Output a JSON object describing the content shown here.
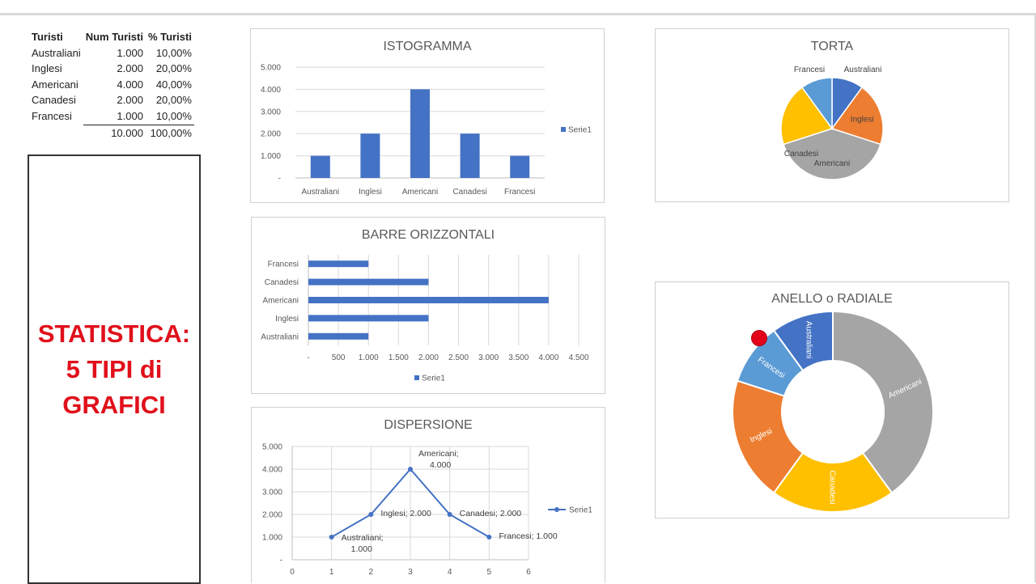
{
  "table": {
    "headers": [
      "Turisti",
      "Num Turisti",
      "% Turisti"
    ],
    "rows": [
      {
        "name": "Australiani",
        "num": "1.000",
        "pct": "10,00%"
      },
      {
        "name": "Inglesi",
        "num": "2.000",
        "pct": "20,00%"
      },
      {
        "name": "Americani",
        "num": "4.000",
        "pct": "40,00%"
      },
      {
        "name": "Canadesi",
        "num": "2.000",
        "pct": "20,00%"
      },
      {
        "name": "Francesi",
        "num": "1.000",
        "pct": "10,00%"
      }
    ],
    "total_num": "10.000",
    "total_pct": "100,00%"
  },
  "title_box": {
    "line1": "STATISTICA:",
    "line2": "5 TIPI di",
    "line3": "GRAFICI",
    "color": "#e0101b"
  },
  "colors": {
    "series_blue": "#4472c4",
    "australiani": "#4472c4",
    "inglesi": "#ed7d31",
    "americani": "#a5a5a5",
    "canadesi": "#ffc000",
    "francesi": "#5b9bd5"
  },
  "chart_data": [
    {
      "type": "bar",
      "title": "ISTOGRAMMA",
      "categories": [
        "Australiani",
        "Inglesi",
        "Americani",
        "Canadesi",
        "Francesi"
      ],
      "values": [
        1000,
        2000,
        4000,
        2000,
        1000
      ],
      "ylim": [
        0,
        5000
      ],
      "yticks": [
        "-",
        "1.000",
        "2.000",
        "3.000",
        "4.000",
        "5.000"
      ],
      "legend": "Serie1",
      "legend_position": "right"
    },
    {
      "type": "bar",
      "orientation": "horizontal",
      "title": "BARRE ORIZZONTALI",
      "categories": [
        "Australiani",
        "Inglesi",
        "Americani",
        "Canadesi",
        "Francesi"
      ],
      "values": [
        1000,
        2000,
        4000,
        2000,
        1000
      ],
      "xlim": [
        0,
        4500
      ],
      "xticks": [
        "-",
        "500",
        "1.000",
        "1.500",
        "2.000",
        "2.500",
        "3.000",
        "3.500",
        "4.000",
        "4.500"
      ],
      "legend": "Serie1",
      "legend_position": "bottom"
    },
    {
      "type": "line",
      "title": "DISPERSIONE",
      "x": [
        1,
        2,
        3,
        4,
        5
      ],
      "y": [
        1000,
        2000,
        4000,
        2000,
        1000
      ],
      "point_labels": [
        "Australiani; 1.000",
        "Inglesi; 2.000",
        "Americani; 4.000",
        "Canadesi; 2.000",
        "Francesi; 1.000"
      ],
      "label_name_lines": [
        "Australiani;",
        "Inglesi;",
        "Americani;",
        "Canadesi;",
        "Francesi;"
      ],
      "label_value_lines": [
        "1.000",
        "2.000",
        "4.000",
        "2.000",
        "1.000"
      ],
      "xlim": [
        0,
        6
      ],
      "ylim": [
        0,
        5000
      ],
      "xticks": [
        "0",
        "1",
        "2",
        "3",
        "4",
        "5",
        "6"
      ],
      "yticks": [
        "-",
        "1.000",
        "2.000",
        "3.000",
        "4.000",
        "5.000"
      ],
      "legend": "Serie1",
      "legend_position": "right"
    },
    {
      "type": "pie",
      "title": "TORTA",
      "categories": [
        "Australiani",
        "Inglesi",
        "Americani",
        "Canadesi",
        "Francesi"
      ],
      "values": [
        1000,
        2000,
        4000,
        2000,
        1000
      ]
    },
    {
      "type": "pie",
      "variant": "doughnut",
      "title": "ANELLO o RADIALE",
      "categories": [
        "Australiani",
        "Americani",
        "Canadesi",
        "Inglesi",
        "Francesi"
      ],
      "values": [
        1000,
        4000,
        2000,
        2000,
        1000
      ]
    }
  ]
}
